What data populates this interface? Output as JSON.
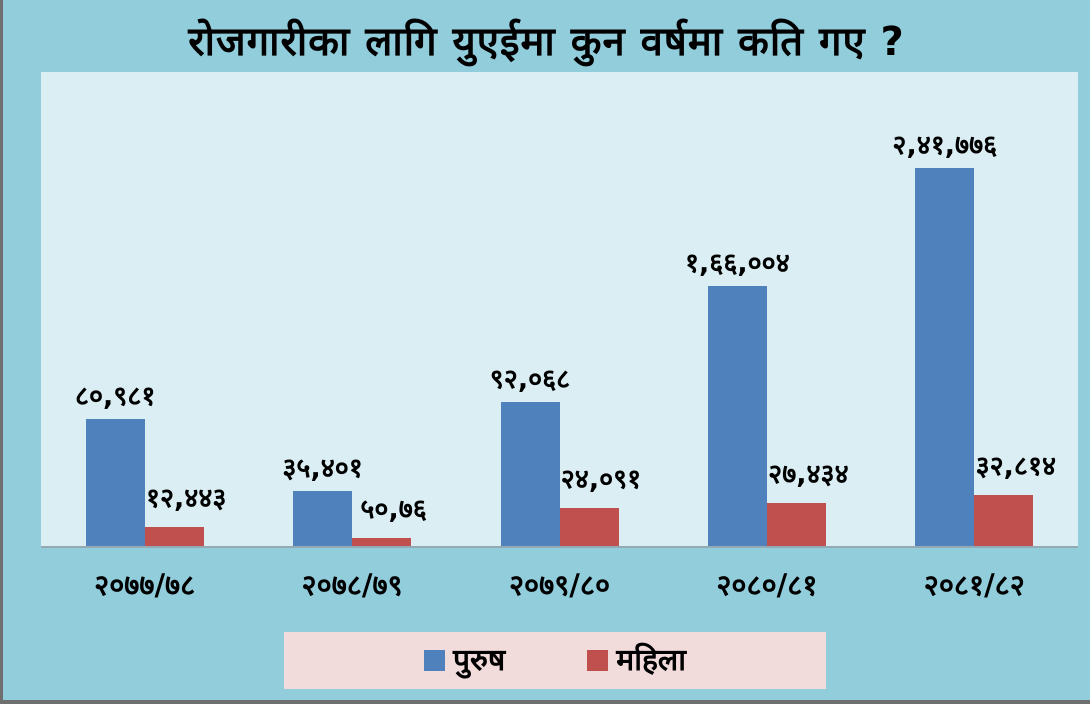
{
  "title": "रोजगारीका लागि युएईमा कुन वर्षमा कति गए ?",
  "chart_data": {
    "type": "bar",
    "title": "रोजगारीका लागि युएईमा कुन वर्षमा कति गए ?",
    "categories": [
      "२०७७/७८",
      "२०७८/७९",
      "२०७९/८०",
      "२०८०/८१",
      "२०८१/८२"
    ],
    "series": [
      {
        "name": "पुरुष",
        "color": "#4f81bd",
        "values": [
          80981,
          35401,
          92068,
          166004,
          241776
        ],
        "value_labels": [
          "८०,९८१",
          "३५,४०१",
          "९२,०६८",
          "१,६६,००४",
          "२,४१,७७६"
        ]
      },
      {
        "name": "महिला",
        "color": "#c0504d",
        "values": [
          12443,
          5076,
          24091,
          27434,
          32814
        ],
        "value_labels": [
          "१२,४४३",
          "५०,७६",
          "२४,०९१",
          "२७,४३४",
          "३२,८१४"
        ]
      }
    ],
    "xlabel": "",
    "ylabel": "",
    "ylim": [
      0,
      241776
    ],
    "grid": false,
    "y_axis_visible": false,
    "legend_position": "bottom-center"
  },
  "colors": {
    "outer_background": "#92cddc",
    "plot_background": "#daeef3",
    "legend_background": "#f2dcdb",
    "men_bar": "#4f81bd",
    "women_bar": "#c0504d",
    "text": "#000000",
    "frame_border": "#6f6f6f"
  }
}
